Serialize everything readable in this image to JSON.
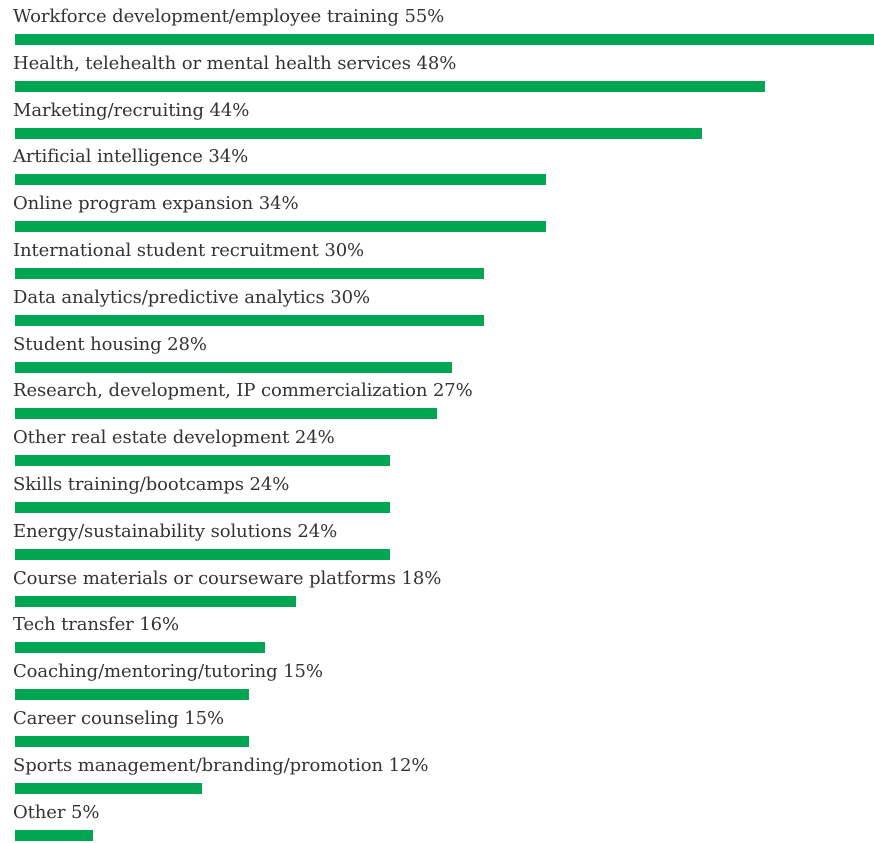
{
  "chart_data": {
    "type": "bar",
    "orientation": "horizontal",
    "categories": [
      "Workforce development/employee training",
      "Health, telehealth or mental health services",
      "Marketing/recruiting",
      "Artificial intelligence",
      "Online program expansion",
      "International student recruitment",
      "Data analytics/predictive analytics",
      "Student housing",
      "Research, development, IP commercialization",
      "Other real estate development",
      "Skills training/bootcamps",
      "Energy/sustainability solutions",
      "Course materials or courseware platforms",
      "Tech transfer",
      "Coaching/mentoring/tutoring",
      "Career counseling",
      "Sports management/branding/promotion",
      "Other"
    ],
    "values": [
      55,
      48,
      44,
      34,
      34,
      30,
      30,
      28,
      27,
      24,
      24,
      24,
      18,
      16,
      15,
      15,
      12,
      5
    ],
    "value_labels": [
      "55%",
      "48%",
      "44%",
      "34%",
      "34%",
      "30%",
      "30%",
      "28%",
      "27%",
      "24%",
      "24%",
      "24%",
      "18%",
      "16%",
      "15%",
      "15%",
      "12%",
      "5%"
    ],
    "xlim": [
      0,
      55
    ],
    "bar_color": "#00a651",
    "grid": false,
    "legend": "none"
  }
}
